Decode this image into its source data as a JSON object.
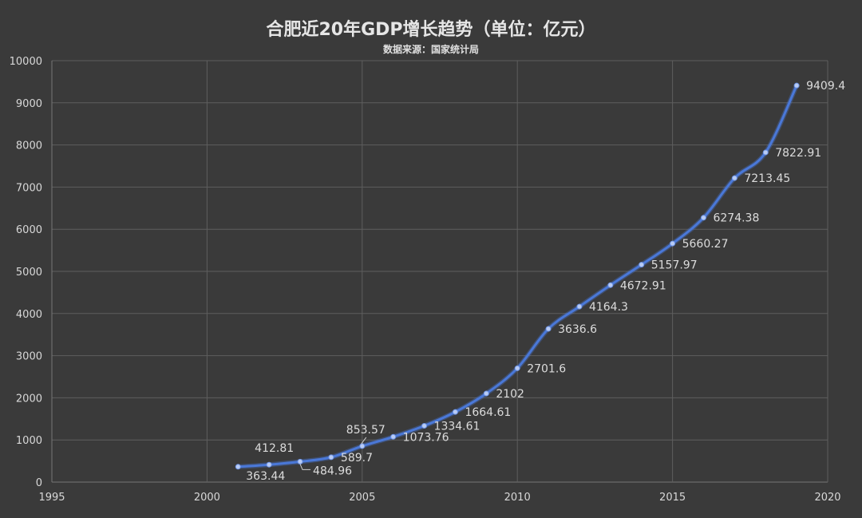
{
  "chart_data": {
    "type": "line",
    "title": "合肥近20年GDP增长趋势（单位：亿元）",
    "subtitle": "数据来源：国家统计局",
    "xlabel": "",
    "ylabel": "",
    "xlim": [
      1995,
      2020
    ],
    "ylim": [
      0,
      10000
    ],
    "x_ticks": [
      1995,
      2000,
      2005,
      2010,
      2015,
      2020
    ],
    "y_ticks": [
      0,
      1000,
      2000,
      3000,
      4000,
      5000,
      6000,
      7000,
      8000,
      9000,
      10000
    ],
    "grid": true,
    "legend": "none",
    "line_color": "#4a78d8",
    "point_color": "#b9ccf5",
    "series": [
      {
        "x": [
          2001,
          2002,
          2003,
          2004,
          2005,
          2006,
          2007,
          2008,
          2009,
          2010,
          2011,
          2012,
          2013,
          2014,
          2015,
          2016,
          2017,
          2018,
          2019
        ],
        "values": [
          363.44,
          412.81,
          484.96,
          589.7,
          853.57,
          1073.76,
          1334.61,
          1664.61,
          2102,
          2701.6,
          3636.6,
          4164.3,
          4672.91,
          5157.97,
          5660.27,
          6274.38,
          7213.45,
          7822.91,
          9409.4
        ],
        "labels": [
          "363.44",
          "412.81",
          "484.96",
          "589.7",
          "853.57",
          "1073.76",
          "1334.61",
          "1664.61",
          "2102",
          "2701.6",
          "3636.6",
          "4164.3",
          "4672.91",
          "5157.97",
          "5660.27",
          "6274.38",
          "7213.45",
          "7822.91",
          "9409.4"
        ]
      }
    ]
  }
}
